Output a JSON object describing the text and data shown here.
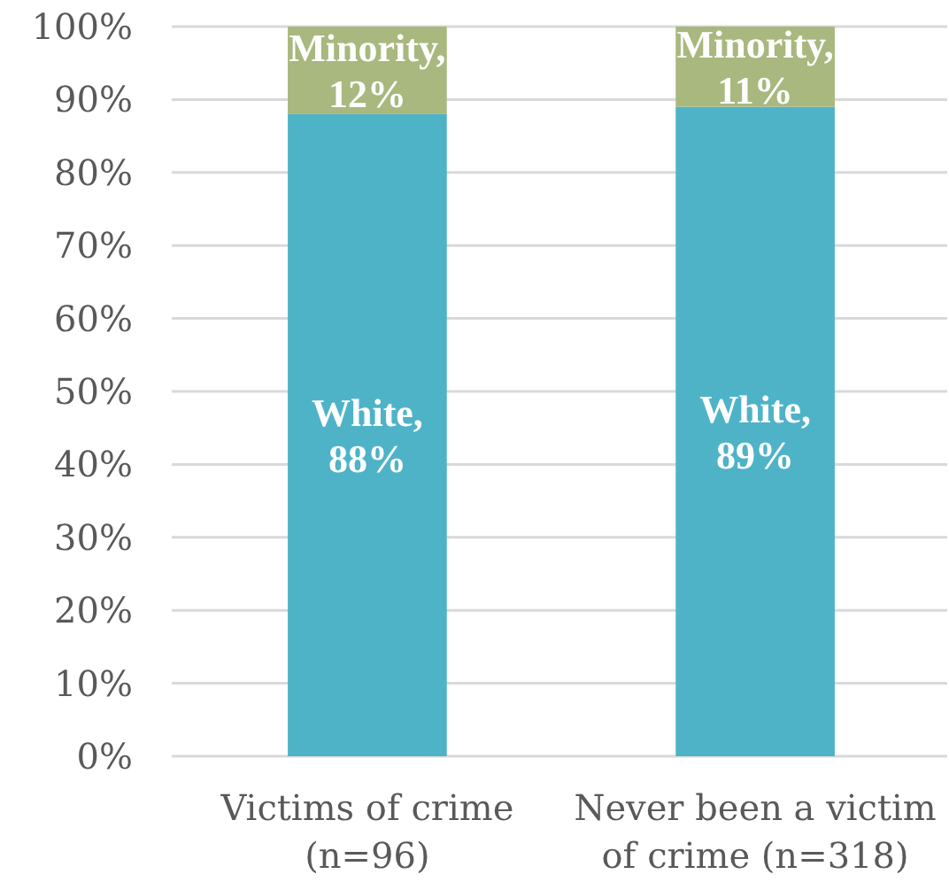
{
  "chart_data": {
    "type": "bar",
    "stacked": true,
    "categories": [
      "Victims of crime (n=96)",
      "Never been a victim of crime (n=318)"
    ],
    "series": [
      {
        "color": "#4fb3c8",
        "values": [
          88,
          89
        ],
        "value_labels": [
          "White, 88%",
          "White, 89%"
        ]
      },
      {
        "color": "#a8b87e",
        "values": [
          12,
          11
        ],
        "value_labels": [
          "Minority, 12%",
          "Minority, 11%"
        ]
      }
    ],
    "ylim": [
      0,
      100
    ],
    "yticks": [
      {
        "value": 0,
        "label": "0%"
      },
      {
        "value": 10,
        "label": "10%"
      },
      {
        "value": 20,
        "label": "20%"
      },
      {
        "value": 30,
        "label": "30%"
      },
      {
        "value": 40,
        "label": "40%"
      },
      {
        "value": 50,
        "label": "50%"
      },
      {
        "value": 60,
        "label": "60%"
      },
      {
        "value": 70,
        "label": "70%"
      },
      {
        "value": 80,
        "label": "80%"
      },
      {
        "value": 90,
        "label": "90%"
      },
      {
        "value": 100,
        "label": "100%"
      }
    ],
    "grid": "y"
  }
}
